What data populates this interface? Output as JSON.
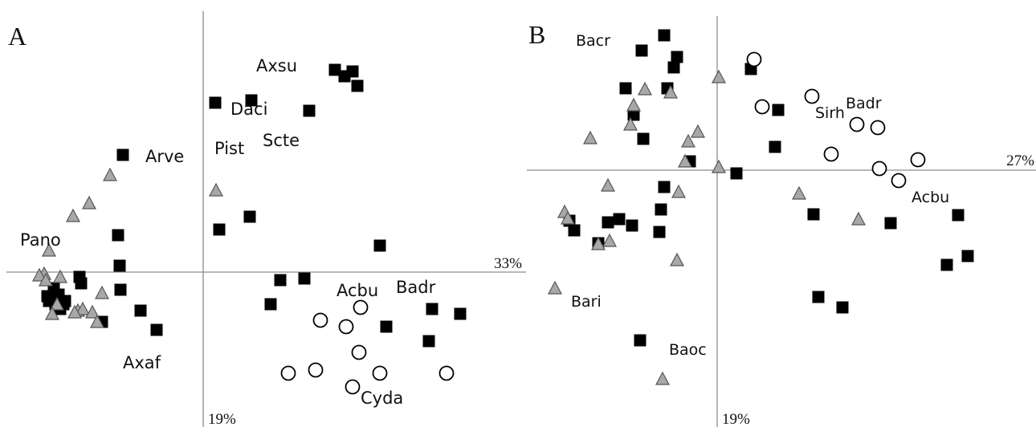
{
  "chart_data": [
    {
      "type": "scatter",
      "panel_label": "A",
      "axis_x_pct": "33%",
      "axis_y_pct": "19%",
      "xlim": [
        -245,
        405
      ],
      "ylim": [
        -192,
        325
      ],
      "series": [
        {
          "marker": "square",
          "color": "#000000",
          "points": [
            [
              -100,
              146
            ],
            [
              -106,
              46
            ],
            [
              -104,
              8
            ],
            [
              -103,
              -22
            ],
            [
              -154,
              -6
            ],
            [
              -152,
              -14
            ],
            [
              -186,
              -20
            ],
            [
              -180,
              -28
            ],
            [
              -184,
              -40
            ],
            [
              -172,
              -36
            ],
            [
              -194,
              -30
            ],
            [
              -192,
              -36
            ],
            [
              -178,
              -46
            ],
            [
              -174,
              -40
            ],
            [
              -126,
              -62
            ],
            [
              -78,
              -48
            ],
            [
              -58,
              -72
            ],
            [
              15,
              211
            ],
            [
              60,
              214
            ],
            [
              20,
              53
            ],
            [
              58,
              69
            ],
            [
              132,
              201
            ],
            [
              164,
              252
            ],
            [
              176,
              244
            ],
            [
              186,
              250
            ],
            [
              192,
              232
            ],
            [
              220,
              33
            ],
            [
              96,
              -10
            ],
            [
              126,
              -8
            ],
            [
              84,
              -40
            ],
            [
              285,
              -46
            ],
            [
              320,
              -52
            ],
            [
              228,
              -68
            ],
            [
              281,
              -86
            ]
          ]
        },
        {
          "marker": "circle",
          "color": "#ffffff",
          "points": [
            [
              196,
              -44
            ],
            [
              146,
              -60
            ],
            [
              178,
              -68
            ],
            [
              194,
              -100
            ],
            [
              106,
              -126
            ],
            [
              140,
              -122
            ],
            [
              220,
              -126
            ],
            [
              186,
              -143
            ],
            [
              303,
              -126
            ]
          ]
        },
        {
          "marker": "triangle",
          "color": "#a8a8a8",
          "points": [
            [
              -116,
              121
            ],
            [
              -142,
              86
            ],
            [
              -162,
              70
            ],
            [
              -192,
              27
            ],
            [
              -198,
              -2
            ],
            [
              -178,
              -6
            ],
            [
              -204,
              -4
            ],
            [
              -196,
              -10
            ],
            [
              -126,
              -26
            ],
            [
              -182,
              -40
            ],
            [
              -156,
              -48
            ],
            [
              -150,
              -46
            ],
            [
              -160,
              -50
            ],
            [
              -138,
              -50
            ],
            [
              -132,
              -62
            ],
            [
              -188,
              -52
            ],
            [
              16,
              102
            ]
          ]
        }
      ],
      "annotations": [
        {
          "text": "Arve",
          "x": -72,
          "y": 137
        },
        {
          "text": "Pano",
          "x": -228,
          "y": 33
        },
        {
          "text": "Axaf",
          "x": -100,
          "y": -120
        },
        {
          "text": "Axsu",
          "x": 66,
          "y": 250
        },
        {
          "text": "Daci",
          "x": 34,
          "y": 196
        },
        {
          "text": "Pist",
          "x": 14,
          "y": 147
        },
        {
          "text": "Scte",
          "x": 74,
          "y": 157
        },
        {
          "text": "Acbu",
          "x": 166,
          "y": -30
        },
        {
          "text": "Badr",
          "x": 240,
          "y": -26
        },
        {
          "text": "Cyda",
          "x": 196,
          "y": -164
        }
      ]
    },
    {
      "type": "scatter",
      "panel_label": "B",
      "axis_x_pct": "27%",
      "axis_y_pct": "19%",
      "xlim": [
        -237,
        395
      ],
      "ylim": [
        -318,
        212
      ],
      "series": [
        {
          "marker": "square",
          "color": "#000000",
          "points": [
            [
              -66,
              168
            ],
            [
              -94,
              149
            ],
            [
              -50,
              141
            ],
            [
              -54,
              128
            ],
            [
              -114,
              102
            ],
            [
              -62,
              102
            ],
            [
              -104,
              69
            ],
            [
              -92,
              39
            ],
            [
              -34,
              11
            ],
            [
              -66,
              -21
            ],
            [
              -122,
              -61
            ],
            [
              -184,
              -63
            ],
            [
              -178,
              -75
            ],
            [
              -136,
              -65
            ],
            [
              -106,
              -69
            ],
            [
              -70,
              -49
            ],
            [
              -72,
              -77
            ],
            [
              -148,
              -91
            ],
            [
              42,
              126
            ],
            [
              76,
              75
            ],
            [
              72,
              29
            ],
            [
              24,
              -4
            ],
            [
              120,
              -55
            ],
            [
              216,
              -66
            ],
            [
              300,
              -56
            ],
            [
              312,
              -107
            ],
            [
              286,
              -118
            ],
            [
              126,
              -158
            ],
            [
              156,
              -171
            ],
            [
              -96,
              -212
            ]
          ]
        },
        {
          "marker": "circle",
          "color": "#ffffff",
          "points": [
            [
              46,
              138
            ],
            [
              56,
              79
            ],
            [
              118,
              92
            ],
            [
              174,
              57
            ],
            [
              200,
              53
            ],
            [
              142,
              20
            ],
            [
              202,
              2
            ],
            [
              226,
              -13
            ],
            [
              250,
              13
            ]
          ]
        },
        {
          "marker": "triangle",
          "color": "#a8a8a8",
          "points": [
            [
              2,
              116
            ],
            [
              -58,
              97
            ],
            [
              -90,
              101
            ],
            [
              -104,
              81
            ],
            [
              -108,
              57
            ],
            [
              -158,
              40
            ],
            [
              -24,
              48
            ],
            [
              -36,
              36
            ],
            [
              -40,
              11
            ],
            [
              -136,
              -19
            ],
            [
              -48,
              -27
            ],
            [
              2,
              4
            ],
            [
              -190,
              -52
            ],
            [
              -186,
              -60
            ],
            [
              -134,
              -88
            ],
            [
              -148,
              -92
            ],
            [
              -50,
              -112
            ],
            [
              -202,
              -147
            ],
            [
              -68,
              -260
            ],
            [
              102,
              -29
            ],
            [
              176,
              -61
            ]
          ]
        }
      ],
      "annotations": [
        {
          "text": "Bacr",
          "x": -176,
          "y": 155
        },
        {
          "text": "Sirh",
          "x": 122,
          "y": 65
        },
        {
          "text": "Badr",
          "x": 160,
          "y": 77
        },
        {
          "text": "Acbu",
          "x": 242,
          "y": -40
        },
        {
          "text": "Bari",
          "x": -182,
          "y": -170
        },
        {
          "text": "Baoc",
          "x": -60,
          "y": -230
        }
      ]
    }
  ]
}
